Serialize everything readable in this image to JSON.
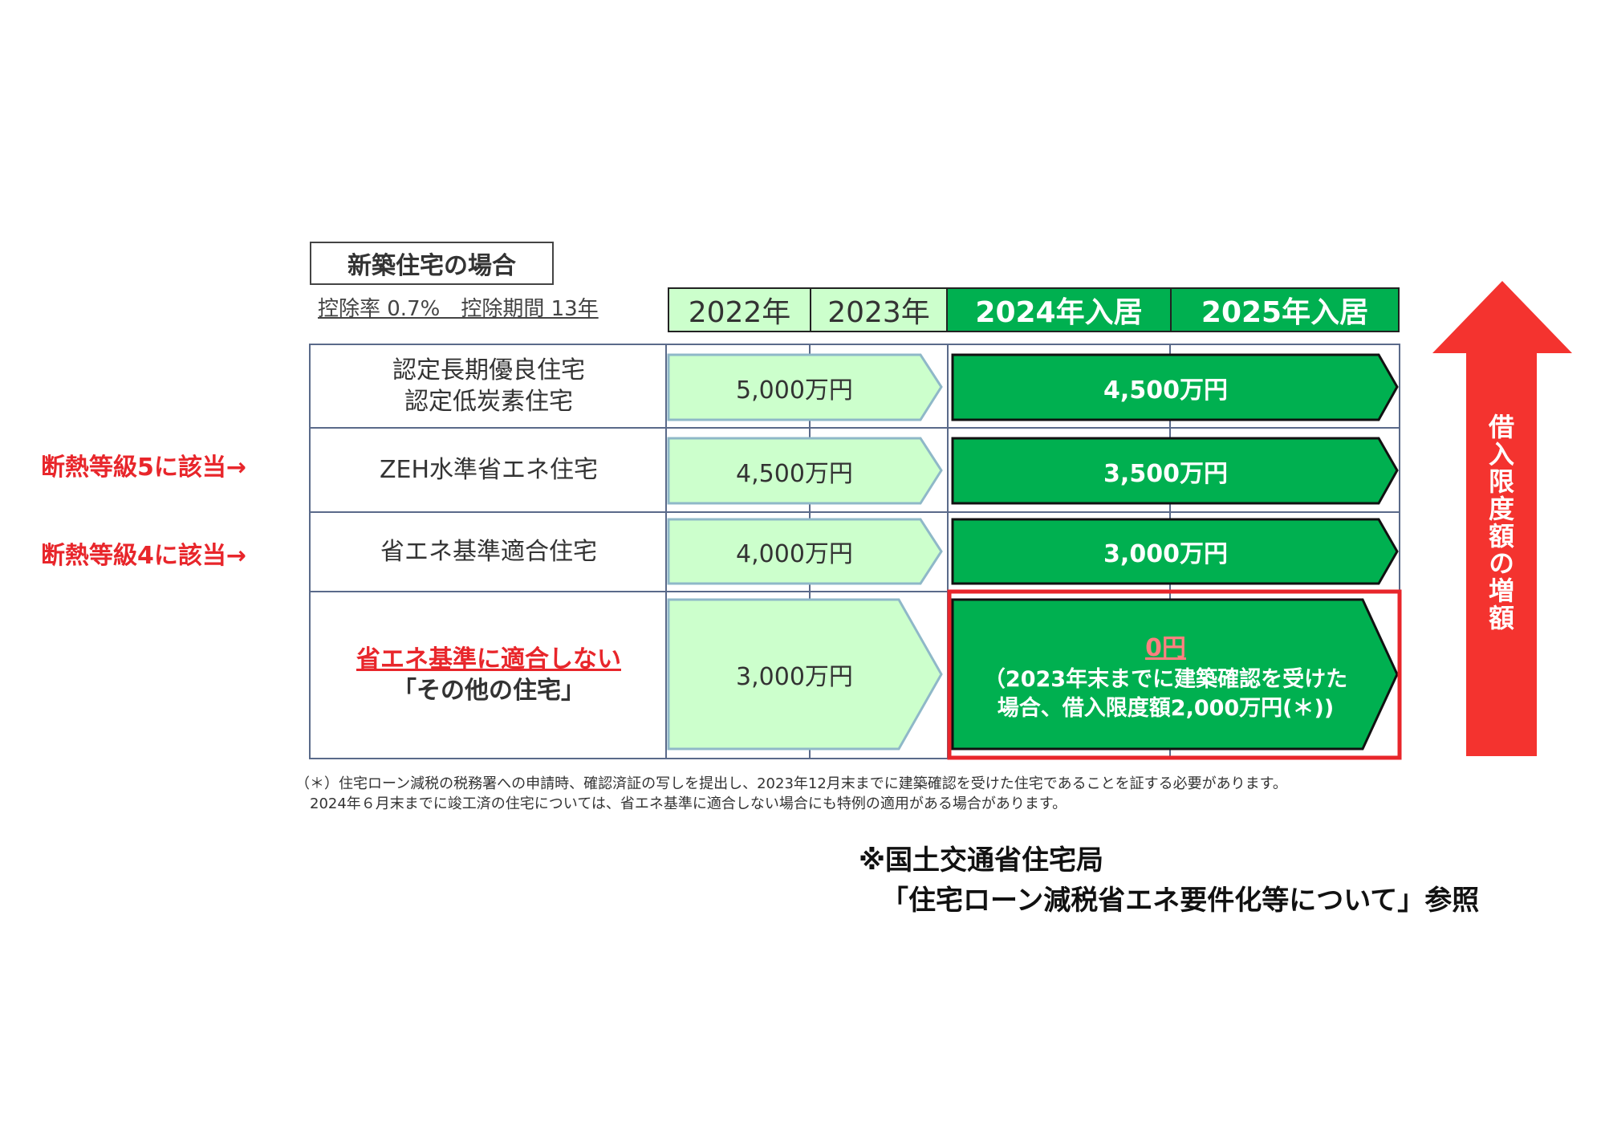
{
  "title": "新築住宅の場合",
  "subtitle": "控除率 0.7%　控除期間 13年",
  "headers": [
    "2022年",
    "2023年",
    "2024年入居",
    "2025年入居"
  ],
  "rows": [
    {
      "label_lines": [
        "認定長期優良住宅",
        "認定低炭素住宅"
      ],
      "value_2022_2023": "5,000万円",
      "value_2024_2025": "4,500万円"
    },
    {
      "label_lines": [
        "ZEH水準省エネ住宅"
      ],
      "value_2022_2023": "4,500万円",
      "value_2024_2025": "3,500万円",
      "side_note": "断熱等級5に該当→"
    },
    {
      "label_lines": [
        "省エネ基準適合住宅"
      ],
      "value_2022_2023": "4,000万円",
      "value_2024_2025": "3,000万円",
      "side_note": "断熱等級4に該当→"
    },
    {
      "label_red": "省エネ基準に適合しない",
      "label_lines": [
        "「その他の住宅」"
      ],
      "value_2022_2023": "3,000万円",
      "value_2024_2025": "0円",
      "value_2024_2025_note": [
        "（2023年末までに建築確認を受けた",
        "場合、借入限度額2,000万円(＊))"
      ]
    }
  ],
  "arrow_label": "借入限度額の増額",
  "footnote": [
    "（＊）住宅ローン減税の税務署への申請時、確認済証の写しを提出し、2023年12月末までに建築確認を受けた住宅であることを証する必要があります。",
    "　2024年６月末までに竣工済の住宅については、省エネ基準に適合しない場合にも特例の適用がある場合があります。"
  ],
  "source": [
    "※国土交通省住宅局",
    "「住宅ローン減税省エネ要件化等について」参照"
  ],
  "colors": {
    "light_green": "#ccffcc",
    "dark_green": "#00b050",
    "red": "#e8262b",
    "zero_text": "#ff8080"
  }
}
